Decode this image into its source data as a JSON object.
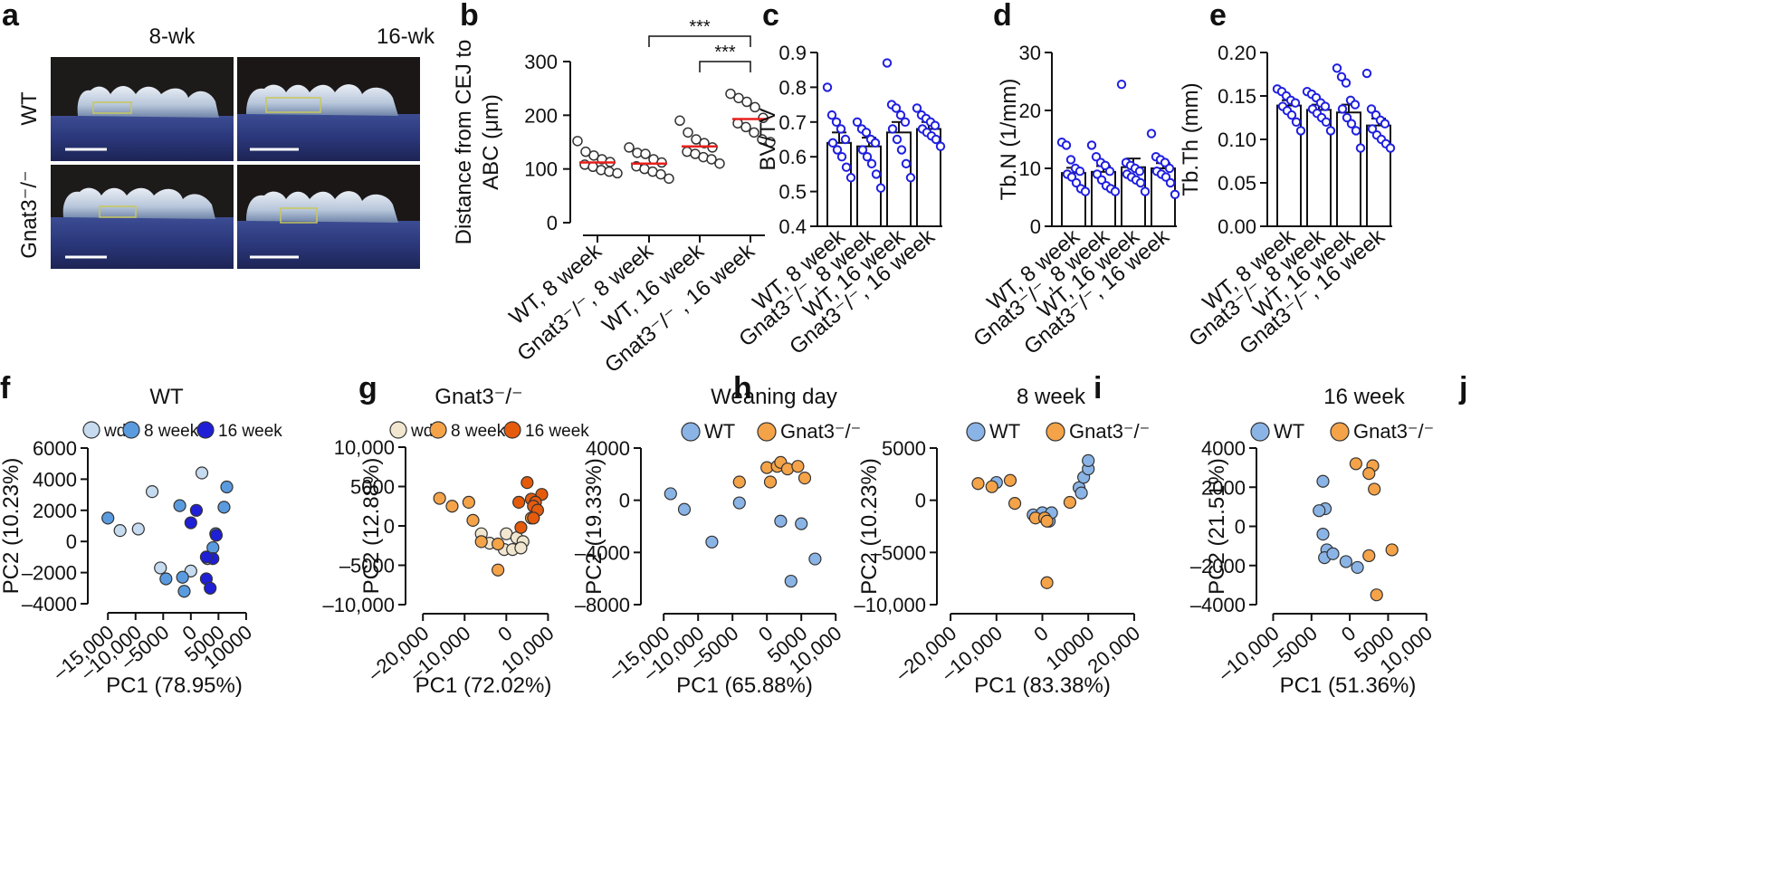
{
  "panel_letters": [
    "a",
    "b",
    "c",
    "d",
    "e",
    "f",
    "g",
    "h",
    "i",
    "j"
  ],
  "panel_a": {
    "columns": [
      "8-wk",
      "16-wk"
    ],
    "rows": [
      "WT",
      "Gnat3⁻/⁻"
    ]
  },
  "chart_data": [
    {
      "panel": "b",
      "type": "scatter",
      "categories": [
        "WT, 8 week",
        "Gnat3⁻/⁻, 8 week",
        "WT, 16 week",
        "Gnat3⁻/⁻ , 16 week"
      ],
      "ylabel_lines": [
        "Distance from CEJ to",
        "ABC (μm)"
      ],
      "ylim": [
        0,
        300
      ],
      "yticks": [
        0,
        100,
        200,
        300
      ],
      "means": [
        112,
        110,
        142,
        193
      ],
      "points": [
        [
          152,
          132,
          125,
          118,
          113,
          108,
          104,
          98,
          95,
          92
        ],
        [
          140,
          130,
          128,
          118,
          112,
          105,
          100,
          95,
          90,
          82
        ],
        [
          190,
          168,
          155,
          148,
          140,
          132,
          128,
          122,
          118,
          110
        ],
        [
          240,
          232,
          225,
          215,
          195,
          185,
          178,
          168,
          155,
          150
        ]
      ],
      "significance": [
        {
          "from": 1,
          "to": 3,
          "label": "***"
        },
        {
          "from": 2,
          "to": 3,
          "label": "***"
        }
      ]
    },
    {
      "panel": "c",
      "type": "bar",
      "categories": [
        "WT, 8 week",
        "Gnat3⁻/⁻, 8 week",
        "WT, 16 week",
        "Gnat3⁻/⁻, 16 week"
      ],
      "ylabel": "BV/TV",
      "ylim": [
        0.4,
        0.9
      ],
      "yticks": [
        "0.4",
        "0.5",
        "0.6",
        "0.7",
        "0.8",
        "0.9"
      ],
      "values": [
        0.64,
        0.63,
        0.67,
        0.68
      ],
      "errors": [
        0.03,
        0.025,
        0.03,
        0.02
      ],
      "points": [
        [
          0.8,
          0.72,
          0.7,
          0.68,
          0.65,
          0.64,
          0.62,
          0.6,
          0.57,
          0.54
        ],
        [
          0.7,
          0.68,
          0.67,
          0.65,
          0.64,
          0.62,
          0.6,
          0.58,
          0.55,
          0.51
        ],
        [
          0.87,
          0.75,
          0.74,
          0.72,
          0.7,
          0.68,
          0.65,
          0.62,
          0.58,
          0.54
        ],
        [
          0.74,
          0.72,
          0.71,
          0.7,
          0.69,
          0.68,
          0.67,
          0.66,
          0.65,
          0.63
        ]
      ]
    },
    {
      "panel": "d",
      "type": "bar",
      "categories": [
        "WT, 8 week",
        "Gnat3⁻/⁻, 8 week",
        "WT, 16 week",
        "Gnat3⁻/⁻, 16 week"
      ],
      "ylabel": "Tb.N (1/mm)",
      "ylim": [
        0,
        30
      ],
      "yticks": [
        "0",
        "10",
        "20",
        "30"
      ],
      "values": [
        9.2,
        9.4,
        10.2,
        10.0
      ],
      "errors": [
        0.9,
        1.0,
        1.5,
        0.9
      ],
      "points": [
        [
          14.5,
          14.0,
          11.5,
          10.0,
          9.5,
          9.0,
          8.5,
          7.5,
          6.5,
          6.0
        ],
        [
          14.0,
          12.0,
          11.0,
          10.5,
          9.5,
          9.0,
          8.0,
          7.0,
          6.5,
          6.0
        ],
        [
          24.5,
          11.0,
          10.5,
          10.0,
          9.5,
          9.0,
          8.5,
          8.0,
          7.5,
          6.0
        ],
        [
          16.0,
          12.0,
          11.5,
          11.0,
          10.0,
          9.5,
          9.0,
          8.5,
          7.5,
          5.5
        ]
      ]
    },
    {
      "panel": "e",
      "type": "bar",
      "categories": [
        "WT, 8 week",
        "Gnat3⁻/⁻, 8 week",
        "WT, 16 week",
        "Gnat3⁻/⁻, 16 week"
      ],
      "ylabel": "Tb.Th (mm)",
      "ylim": [
        0,
        0.2
      ],
      "yticks": [
        "0.00",
        "0.05",
        "0.10",
        "0.15",
        "0.20"
      ],
      "values": [
        0.139,
        0.134,
        0.131,
        0.116
      ],
      "errors": [
        0.006,
        0.006,
        0.009,
        0.008
      ],
      "points": [
        [
          0.158,
          0.155,
          0.15,
          0.145,
          0.142,
          0.138,
          0.133,
          0.128,
          0.12,
          0.11
        ],
        [
          0.155,
          0.152,
          0.148,
          0.142,
          0.138,
          0.135,
          0.13,
          0.125,
          0.12,
          0.11
        ],
        [
          0.182,
          0.172,
          0.165,
          0.145,
          0.14,
          0.135,
          0.125,
          0.118,
          0.11,
          0.09
        ],
        [
          0.176,
          0.135,
          0.128,
          0.122,
          0.118,
          0.112,
          0.105,
          0.1,
          0.095,
          0.09
        ]
      ]
    },
    {
      "panel": "f",
      "type": "scatter",
      "title": "WT",
      "xlabel": "PC1 (78.95%)",
      "ylabel": "PC2 (10.23%)",
      "xlim": [
        -17000,
        11000
      ],
      "ylim": [
        -4000,
        6000
      ],
      "xticks": [
        -15000,
        -10000,
        -5000,
        0,
        5000,
        10000
      ],
      "xtick_labels": [
        "–15,000",
        "–10,000",
        "–5000",
        "0",
        "5000",
        "10000"
      ],
      "yticks": [
        -4000,
        -2000,
        0,
        2000,
        4000,
        6000
      ],
      "ytick_labels": [
        "–4000",
        "–2000",
        "0",
        "2000",
        "4000",
        "6000"
      ],
      "series": [
        {
          "name": "wd",
          "color": "#c6dbef",
          "points": [
            [
              2000,
              4400
            ],
            [
              -7000,
              3200
            ],
            [
              -9500,
              800
            ],
            [
              -12800,
              700
            ],
            [
              -5500,
              -1700
            ],
            [
              3000,
              -1100
            ],
            [
              0,
              -1900
            ]
          ]
        },
        {
          "name": "8 week",
          "color": "#5a9be0",
          "points": [
            [
              -15000,
              1500
            ],
            [
              6500,
              3500
            ],
            [
              6000,
              2200
            ],
            [
              -2000,
              2300
            ],
            [
              4500,
              500
            ],
            [
              4000,
              -400
            ],
            [
              -4500,
              -2400
            ],
            [
              -1500,
              -2300
            ],
            [
              -1200,
              -3200
            ]
          ]
        },
        {
          "name": "16 week",
          "color": "#1f1fd6",
          "points": [
            [
              1000,
              2000
            ],
            [
              0,
              1200
            ],
            [
              4600,
              400
            ],
            [
              4000,
              -1100
            ],
            [
              2800,
              -1000
            ],
            [
              2800,
              -2400
            ],
            [
              3500,
              -3000
            ]
          ]
        }
      ]
    },
    {
      "panel": "g",
      "type": "scatter",
      "title": "Gnat3⁻/⁻",
      "xlabel": "PC1 (72.02%)",
      "ylabel": "PC2 (12.88%)",
      "xlim": [
        -22000,
        11000
      ],
      "ylim": [
        -10000,
        10000
      ],
      "xticks": [
        -20000,
        -10000,
        0,
        10000
      ],
      "xtick_labels": [
        "–20,000",
        "–10,000",
        "0",
        "10,000"
      ],
      "yticks": [
        -10000,
        -5000,
        0,
        5000,
        10000
      ],
      "ytick_labels": [
        "–10,000",
        "–5000",
        "0",
        "5000",
        "10,000"
      ],
      "series": [
        {
          "name": "wd",
          "color": "#f1e6cf",
          "points": [
            [
              -6000,
              -1000
            ],
            [
              0,
              -1000
            ],
            [
              2500,
              -1500
            ],
            [
              4000,
              -2000
            ],
            [
              -4000,
              -2200
            ],
            [
              -500,
              -3000
            ],
            [
              1500,
              -3000
            ],
            [
              3500,
              -2800
            ]
          ]
        },
        {
          "name": "8 week",
          "color": "#f5a348",
          "points": [
            [
              -16000,
              3500
            ],
            [
              -13000,
              2500
            ],
            [
              -9000,
              3000
            ],
            [
              -8000,
              700
            ],
            [
              -6000,
              -2000
            ],
            [
              -2000,
              -2300
            ],
            [
              -2000,
              -5600
            ],
            [
              6000,
              1000
            ]
          ]
        },
        {
          "name": "16 week",
          "color": "#e55b0c",
          "points": [
            [
              5000,
              5500
            ],
            [
              8500,
              4000
            ],
            [
              3000,
              3000
            ],
            [
              6000,
              3400
            ],
            [
              7000,
              3000
            ],
            [
              6500,
              2500
            ],
            [
              7500,
              2000
            ],
            [
              6500,
              1000
            ],
            [
              3500,
              -200
            ]
          ]
        }
      ]
    },
    {
      "panel": "h",
      "type": "scatter",
      "title": "Weaning day",
      "xlabel": "PC1 (65.88%)",
      "ylabel": "PC2 (19.33%)",
      "xlim": [
        -17000,
        10500
      ],
      "ylim": [
        -8000,
        4000
      ],
      "xticks": [
        -15000,
        -10000,
        -5000,
        0,
        5000,
        10000
      ],
      "xtick_labels": [
        "–15,000",
        "–10,000",
        "–5000",
        "0",
        "5000",
        "10,000"
      ],
      "yticks": [
        -8000,
        -4000,
        0,
        4000
      ],
      "ytick_labels": [
        "–8000",
        "–4000",
        "0",
        "4000"
      ],
      "series": [
        {
          "name": "WT",
          "color": "#8ab4e6",
          "points": [
            [
              -14000,
              500
            ],
            [
              -12000,
              -700
            ],
            [
              -8000,
              -3200
            ],
            [
              -4000,
              -200
            ],
            [
              2000,
              -1600
            ],
            [
              5000,
              -1800
            ],
            [
              7000,
              -4500
            ],
            [
              3500,
              -6200
            ]
          ]
        },
        {
          "name": "Gnat3⁻/⁻",
          "color": "#f5a348",
          "points": [
            [
              -4000,
              1400
            ],
            [
              0,
              2500
            ],
            [
              1500,
              2600
            ],
            [
              2000,
              2900
            ],
            [
              3000,
              2400
            ],
            [
              4500,
              2600
            ],
            [
              5500,
              1700
            ],
            [
              500,
              1400
            ]
          ]
        }
      ]
    },
    {
      "panel": "i",
      "type": "scatter",
      "title": "8 week",
      "xlabel": "PC1 (83.38%)",
      "ylabel": "PC2 (10.23%)",
      "xlim": [
        -21000,
        21000
      ],
      "ylim": [
        -10000,
        5000
      ],
      "xticks": [
        -20000,
        -10000,
        0,
        10000,
        20000
      ],
      "xtick_labels": [
        "–20,000",
        "–10,000",
        "0",
        "10000",
        "20,000"
      ],
      "yticks": [
        -10000,
        -5000,
        0,
        5000
      ],
      "ytick_labels": [
        "–10,000",
        "–5000",
        "0",
        "5000"
      ],
      "series": [
        {
          "name": "WT",
          "color": "#8ab4e6",
          "points": [
            [
              -10000,
              1700
            ],
            [
              -2000,
              -1400
            ],
            [
              0,
              -1200
            ],
            [
              1500,
              -2000
            ],
            [
              2000,
              -1200
            ],
            [
              8000,
              1200
            ],
            [
              8500,
              700
            ],
            [
              9000,
              2200
            ],
            [
              10000,
              3000
            ],
            [
              10000,
              3800
            ]
          ]
        },
        {
          "name": "Gnat3⁻/⁻",
          "color": "#f5a348",
          "points": [
            [
              -14000,
              1600
            ],
            [
              -11000,
              1300
            ],
            [
              -7000,
              1900
            ],
            [
              -6000,
              -300
            ],
            [
              -1500,
              -1700
            ],
            [
              500,
              -1700
            ],
            [
              1000,
              -2000
            ],
            [
              6000,
              -200
            ],
            [
              1000,
              -7900
            ]
          ]
        }
      ]
    },
    {
      "panel": "j",
      "type": "scatter",
      "title": "16 week",
      "xlabel": "PC1 (51.36%)",
      "ylabel": "PC2 (21.51%)",
      "xlim": [
        -11000,
        10500
      ],
      "ylim": [
        -4000,
        4000
      ],
      "xticks": [
        -10000,
        -5000,
        0,
        5000,
        10000
      ],
      "xtick_labels": [
        "–10,000",
        "–5000",
        "0",
        "5000",
        "10,000"
      ],
      "yticks": [
        -4000,
        -2000,
        0,
        2000,
        4000
      ],
      "ytick_labels": [
        "–4000",
        "–2000",
        "0",
        "2000",
        "4000"
      ],
      "series": [
        {
          "name": "WT",
          "color": "#8ab4e6",
          "points": [
            [
              -3500,
              2300
            ],
            [
              -3200,
              900
            ],
            [
              -4000,
              800
            ],
            [
              -3500,
              -400
            ],
            [
              -3000,
              -1200
            ],
            [
              -3300,
              -1600
            ],
            [
              -2200,
              -1400
            ],
            [
              -500,
              -1800
            ],
            [
              1000,
              -2100
            ]
          ]
        },
        {
          "name": "Gnat3⁻/⁻",
          "color": "#f5a348",
          "points": [
            [
              800,
              3200
            ],
            [
              3000,
              3100
            ],
            [
              2500,
              2700
            ],
            [
              3200,
              1900
            ],
            [
              2500,
              -1500
            ],
            [
              5500,
              -1200
            ],
            [
              3500,
              -3500
            ]
          ]
        }
      ]
    }
  ]
}
